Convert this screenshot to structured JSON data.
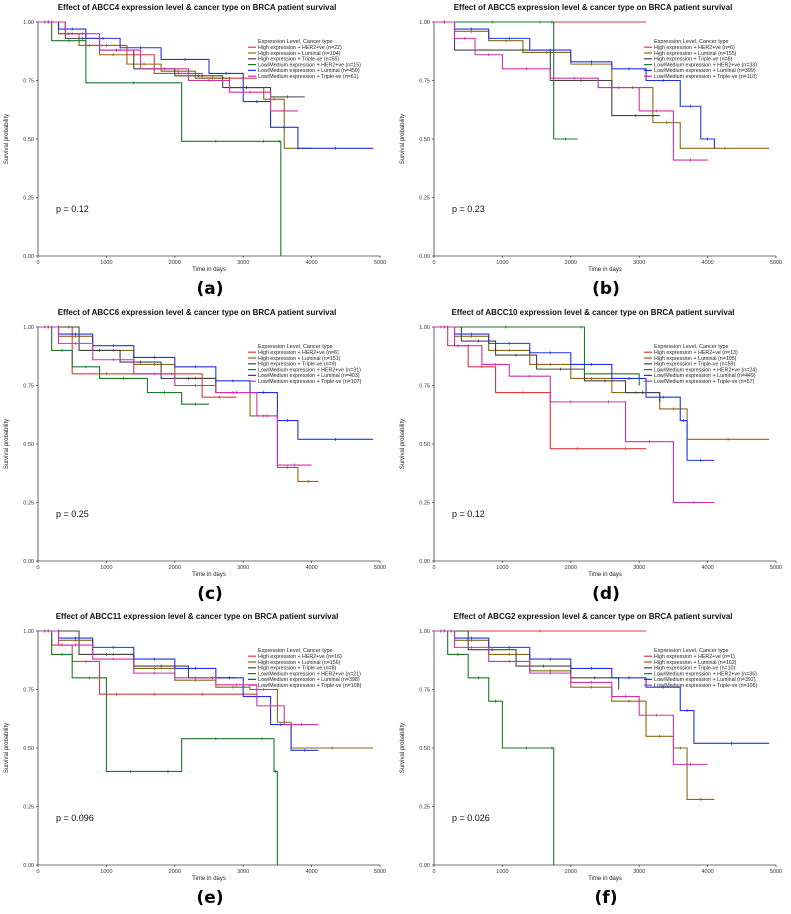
{
  "chart_data": [
    {
      "type": "line",
      "panel_label": "(a)",
      "title": "Effect of ABCC4 expression level & cancer type on BRCA patient survival",
      "xlabel": "Time in days",
      "ylabel": "Survival probability",
      "xlim": [
        0,
        5000
      ],
      "ylim": [
        0,
        1
      ],
      "xticks": [
        "0",
        "1000",
        "2000",
        "3000",
        "4000",
        "5000"
      ],
      "yticks": [
        "0.00",
        "0.25",
        "0.50",
        "0.75",
        "1.00"
      ],
      "p_value": "p = 0.12",
      "legend_title": "Expression Level, Cancer type",
      "series": [
        {
          "name": "High expression + HER2+ve (n=22)",
          "color": "#e0393e",
          "x": [
            0,
            300,
            700,
            1300,
            1700,
            2400,
            3200
          ],
          "y": [
            1,
            0.95,
            0.9,
            0.86,
            0.78,
            0.76,
            0.76
          ]
        },
        {
          "name": "High expression + Luminal (n=104)",
          "color": "#8b6914",
          "x": [
            0,
            300,
            600,
            900,
            1300,
            1800,
            2300,
            2800,
            3300,
            3600,
            4000
          ],
          "y": [
            1,
            0.95,
            0.9,
            0.86,
            0.82,
            0.79,
            0.76,
            0.72,
            0.67,
            0.46,
            0.46
          ]
        },
        {
          "name": "High expression + Triple-ve (n=55)",
          "color": "#444444",
          "x": [
            0,
            400,
            900,
            1400,
            2000,
            2700,
            3400,
            3900
          ],
          "y": [
            1,
            0.93,
            0.88,
            0.8,
            0.77,
            0.72,
            0.68,
            0.68
          ]
        },
        {
          "name": "Low/Medium expression + HER2+ve (n=15)",
          "color": "#1a7a2a",
          "x": [
            0,
            200,
            700,
            2100,
            3100,
            3500,
            3550
          ],
          "y": [
            1,
            0.92,
            0.74,
            0.49,
            0.49,
            0.49,
            0.0
          ]
        },
        {
          "name": "Low/Medium expression + Luminal (n=450)",
          "color": "#2233dd",
          "x": [
            0,
            300,
            700,
            1200,
            1800,
            2500,
            3000,
            3400,
            3800,
            4900
          ],
          "y": [
            1,
            0.97,
            0.93,
            0.89,
            0.84,
            0.78,
            0.66,
            0.55,
            0.46,
            0.46
          ]
        },
        {
          "name": "Low/Medium expression + Triple-ve (n=61)",
          "color": "#cc33aa",
          "x": [
            0,
            400,
            900,
            1500,
            2200,
            2800,
            3400,
            3800
          ],
          "y": [
            1,
            0.95,
            0.88,
            0.8,
            0.75,
            0.7,
            0.62,
            0.62
          ]
        }
      ]
    },
    {
      "type": "line",
      "panel_label": "(b)",
      "title": "Effect of ABCC5 expression level & cancer type on BRCA patient survival",
      "xlabel": "Time in days",
      "ylabel": "Survival probability",
      "xlim": [
        0,
        5000
      ],
      "ylim": [
        0,
        1
      ],
      "xticks": [
        "0",
        "1000",
        "2000",
        "3000",
        "4000",
        "5000"
      ],
      "yticks": [
        "0.00",
        "0.25",
        "0.50",
        "0.75",
        "1.00"
      ],
      "p_value": "p = 0.23",
      "legend_title": "Expression Level, Cancer type",
      "series": [
        {
          "name": "High expression + HER2+ve (n=6)",
          "color": "#e0393e",
          "x": [
            0,
            3100
          ],
          "y": [
            1,
            1
          ]
        },
        {
          "name": "High expression + Luminal (n=155)",
          "color": "#8b6914",
          "x": [
            0,
            300,
            800,
            1300,
            2000,
            2600,
            3200,
            3600,
            4900
          ],
          "y": [
            1,
            0.96,
            0.92,
            0.87,
            0.82,
            0.72,
            0.57,
            0.46,
            0.46
          ]
        },
        {
          "name": "High expression + Triple-ve (n=8)",
          "color": "#444444",
          "x": [
            0,
            300,
            900,
            1700,
            2600,
            3300
          ],
          "y": [
            1,
            0.88,
            0.88,
            0.75,
            0.6,
            0.6
          ]
        },
        {
          "name": "Low/Medium expression + HER2+ve (n=33)",
          "color": "#1a7a2a",
          "x": [
            0,
            1700,
            1750,
            2100
          ],
          "y": [
            1,
            1,
            0.5,
            0.5
          ]
        },
        {
          "name": "Low/Medium expression + Luminal (n=399)",
          "color": "#2233dd",
          "x": [
            0,
            300,
            800,
            1400,
            2000,
            2600,
            3100,
            3600,
            3900,
            4100
          ],
          "y": [
            1,
            0.97,
            0.93,
            0.88,
            0.83,
            0.8,
            0.75,
            0.64,
            0.5,
            0.46
          ]
        },
        {
          "name": "Low/Medium expression + Triple-ve (n=110)",
          "color": "#cc33aa",
          "x": [
            0,
            300,
            600,
            1000,
            1700,
            2400,
            3000,
            3500,
            4000
          ],
          "y": [
            1,
            0.93,
            0.86,
            0.8,
            0.76,
            0.72,
            0.62,
            0.41,
            0.41
          ]
        }
      ]
    },
    {
      "type": "line",
      "panel_label": "(c)",
      "title": "Effect of ABCC6 expression level & cancer type on BRCA patient survival",
      "xlabel": "Time in days",
      "ylabel": "Survival probability",
      "xlim": [
        0,
        5000
      ],
      "ylim": [
        0,
        1
      ],
      "xticks": [
        "0",
        "1000",
        "2000",
        "3000",
        "4000",
        "5000"
      ],
      "yticks": [
        "0.00",
        "0.25",
        "0.50",
        "0.75",
        "1.00"
      ],
      "p_value": "p = 0.25",
      "legend_title": "Expression Level, Cancer type",
      "series": [
        {
          "name": "High expression + HER2+ve (n=6)",
          "color": "#e0393e",
          "x": [
            0,
            400,
            500,
            1500,
            2400,
            2900
          ],
          "y": [
            1,
            1,
            0.8,
            0.8,
            0.7,
            0.7
          ]
        },
        {
          "name": "High expression + Luminal (n=151)",
          "color": "#8b6914",
          "x": [
            0,
            300,
            800,
            1400,
            2000,
            2600,
            3100,
            3500,
            3800,
            4100
          ],
          "y": [
            1,
            0.96,
            0.9,
            0.84,
            0.78,
            0.72,
            0.62,
            0.4,
            0.34,
            0.34
          ]
        },
        {
          "name": "High expression + Triple-ve (n=9)",
          "color": "#444444",
          "x": [
            0,
            600,
            1200,
            1800,
            2600
          ],
          "y": [
            1,
            0.9,
            0.85,
            0.78,
            0.72
          ]
        },
        {
          "name": "Low/Medium expression + HER2+ve (n=31)",
          "color": "#1a7a2a",
          "x": [
            0,
            200,
            500,
            900,
            1600,
            2100,
            2500
          ],
          "y": [
            1,
            0.9,
            0.83,
            0.78,
            0.72,
            0.67,
            0.67
          ]
        },
        {
          "name": "Low/Medium expression + Luminal (n=403)",
          "color": "#2233dd",
          "x": [
            0,
            300,
            800,
            1400,
            2000,
            2600,
            3100,
            3500,
            3800,
            4900
          ],
          "y": [
            1,
            0.97,
            0.92,
            0.87,
            0.83,
            0.77,
            0.72,
            0.6,
            0.52,
            0.52
          ]
        },
        {
          "name": "Low/Medium expression + Triple-ve (n=107)",
          "color": "#cc33aa",
          "x": [
            0,
            300,
            800,
            1400,
            2000,
            2600,
            3200,
            3500,
            4000
          ],
          "y": [
            1,
            0.93,
            0.86,
            0.8,
            0.75,
            0.72,
            0.62,
            0.41,
            0.41
          ]
        }
      ]
    },
    {
      "type": "line",
      "panel_label": "(d)",
      "title": "Effect of ABCC10 expression level & cancer type on BRCA patient survival",
      "xlabel": "Time in days",
      "ylabel": "Survival probability",
      "xlim": [
        0,
        5000
      ],
      "ylim": [
        0,
        1
      ],
      "xticks": [
        "0",
        "1000",
        "2000",
        "3000",
        "4000",
        "5000"
      ],
      "yticks": [
        "0.00",
        "0.25",
        "0.50",
        "0.75",
        "1.00"
      ],
      "p_value": "p = 0.12",
      "legend_title": "Expression Level, Cancer type",
      "series": [
        {
          "name": "High expression + HER2+ve (n=13)",
          "color": "#e0393e",
          "x": [
            0,
            200,
            500,
            900,
            1700,
            2500,
            3100
          ],
          "y": [
            1,
            0.92,
            0.83,
            0.72,
            0.48,
            0.48,
            0.48
          ]
        },
        {
          "name": "High expression + Luminal (n=105)",
          "color": "#8b6914",
          "x": [
            0,
            300,
            800,
            1400,
            2000,
            2600,
            3300,
            3700,
            4900
          ],
          "y": [
            1,
            0.96,
            0.9,
            0.84,
            0.78,
            0.72,
            0.65,
            0.52,
            0.52
          ]
        },
        {
          "name": "High expression + Triple-ve (n=59)",
          "color": "#444444",
          "x": [
            0,
            400,
            900,
            1500,
            2200,
            2800,
            3300
          ],
          "y": [
            1,
            0.94,
            0.88,
            0.82,
            0.77,
            0.72,
            0.68
          ]
        },
        {
          "name": "Low/Medium expression + HER2+ve (n=24)",
          "color": "#1a7a2a",
          "x": [
            0,
            2100,
            2200,
            3000
          ],
          "y": [
            1,
            1,
            0.8,
            0.75
          ]
        },
        {
          "name": "Low/Medium expression + Luminal (n=449)",
          "color": "#2233dd",
          "x": [
            0,
            300,
            800,
            1400,
            2000,
            2600,
            3100,
            3600,
            3700,
            4100
          ],
          "y": [
            1,
            0.97,
            0.93,
            0.89,
            0.84,
            0.78,
            0.7,
            0.6,
            0.43,
            0.43
          ]
        },
        {
          "name": "Low/Medium expression + Triple-ve (n=57)",
          "color": "#cc33aa",
          "x": [
            0,
            300,
            700,
            1100,
            1700,
            2300,
            2800,
            3500,
            4100
          ],
          "y": [
            1,
            0.92,
            0.84,
            0.79,
            0.68,
            0.68,
            0.51,
            0.25,
            0.25
          ]
        }
      ]
    },
    {
      "type": "line",
      "panel_label": "(e)",
      "title": "Effect of ABCC11 expression level & cancer type on BRCA patient survival",
      "xlabel": "Time in days",
      "ylabel": "Survival probability",
      "xlim": [
        0,
        5000
      ],
      "ylim": [
        0,
        1
      ],
      "xticks": [
        "0",
        "1000",
        "2000",
        "3000",
        "4000",
        "5000"
      ],
      "yticks": [
        "0.00",
        "0.25",
        "0.50",
        "0.75",
        "1.00"
      ],
      "p_value": "p = 0.096",
      "legend_title": "Expression Level, Cancer type",
      "series": [
        {
          "name": "High expression + HER2+ve (n=16)",
          "color": "#e0393e",
          "x": [
            0,
            200,
            500,
            900,
            1400,
            2000,
            2800,
            3200
          ],
          "y": [
            1,
            0.94,
            0.87,
            0.73,
            0.73,
            0.73,
            0.73,
            0.73
          ]
        },
        {
          "name": "High expression + Luminal (n=156)",
          "color": "#8b6914",
          "x": [
            0,
            300,
            800,
            1400,
            2000,
            2600,
            3100,
            3500,
            3700,
            4900
          ],
          "y": [
            1,
            0.96,
            0.9,
            0.84,
            0.79,
            0.76,
            0.75,
            0.61,
            0.5,
            0.5
          ]
        },
        {
          "name": "High expression + Triple-ve (n=8)",
          "color": "#444444",
          "x": [
            0,
            600,
            1400,
            2200,
            2900
          ],
          "y": [
            1,
            0.9,
            0.85,
            0.8,
            0.8
          ]
        },
        {
          "name": "Low/Medium expression + HER2+ve (n=21)",
          "color": "#1a7a2a",
          "x": [
            0,
            200,
            500,
            1000,
            1700,
            2100,
            3100,
            3450,
            3500
          ],
          "y": [
            1,
            0.9,
            0.8,
            0.4,
            0.4,
            0.54,
            0.54,
            0.4,
            0.0
          ]
        },
        {
          "name": "Low/Medium expression + Luminal (n=398)",
          "color": "#2233dd",
          "x": [
            0,
            300,
            800,
            1400,
            2000,
            2600,
            3000,
            3400,
            3700,
            4100
          ],
          "y": [
            1,
            0.97,
            0.93,
            0.88,
            0.84,
            0.8,
            0.72,
            0.6,
            0.49,
            0.49
          ]
        },
        {
          "name": "Low/Medium expression + Triple-ve (n=108)",
          "color": "#cc33aa",
          "x": [
            0,
            300,
            800,
            1400,
            2000,
            2600,
            3200,
            3600,
            4100
          ],
          "y": [
            1,
            0.94,
            0.88,
            0.82,
            0.8,
            0.77,
            0.68,
            0.6,
            0.6
          ]
        }
      ]
    },
    {
      "type": "line",
      "panel_label": "(f)",
      "title": "Effect of ABCG2 expression level & cancer type on BRCA patient survival",
      "xlabel": "Time in days",
      "ylabel": "Survival probability",
      "xlim": [
        0,
        5000
      ],
      "ylim": [
        0,
        1
      ],
      "xticks": [
        "0",
        "1000",
        "2000",
        "3000",
        "4000",
        "5000"
      ],
      "yticks": [
        "0.00",
        "0.25",
        "0.50",
        "0.75",
        "1.00"
      ],
      "p_value": "p = 0.026",
      "legend_title": "Expression Level, Cancer type",
      "series": [
        {
          "name": "High expression + HER2+ve (n=1)",
          "color": "#e0393e",
          "x": [
            0,
            3100
          ],
          "y": [
            1,
            1
          ]
        },
        {
          "name": "High expression + Luminal (n=162)",
          "color": "#8b6914",
          "x": [
            0,
            300,
            800,
            1400,
            2000,
            2600,
            3100,
            3500,
            3700,
            4100
          ],
          "y": [
            1,
            0.96,
            0.9,
            0.83,
            0.76,
            0.7,
            0.55,
            0.5,
            0.28,
            0.28
          ]
        },
        {
          "name": "High expression + Triple-ve (n=10)",
          "color": "#444444",
          "x": [
            0,
            500,
            1200,
            2000,
            2700
          ],
          "y": [
            1,
            0.92,
            0.85,
            0.8,
            0.75
          ]
        },
        {
          "name": "Low/Medium expression + HER2+ve (n=36)",
          "color": "#1a7a2a",
          "x": [
            0,
            200,
            500,
            800,
            1000,
            1700,
            1750
          ],
          "y": [
            1,
            0.9,
            0.8,
            0.7,
            0.5,
            0.5,
            0.0
          ]
        },
        {
          "name": "Low/Medium expression + Luminal (n=392)",
          "color": "#2233dd",
          "x": [
            0,
            300,
            800,
            1400,
            2000,
            2600,
            3100,
            3600,
            3800,
            4900
          ],
          "y": [
            1,
            0.97,
            0.93,
            0.88,
            0.84,
            0.8,
            0.76,
            0.66,
            0.52,
            0.52
          ]
        },
        {
          "name": "Low/Medium expression + Triple-ve (n=106)",
          "color": "#cc33aa",
          "x": [
            0,
            300,
            800,
            1400,
            2000,
            2600,
            3000,
            3500,
            4000
          ],
          "y": [
            1,
            0.93,
            0.87,
            0.82,
            0.78,
            0.72,
            0.64,
            0.43,
            0.43
          ]
        }
      ]
    }
  ]
}
